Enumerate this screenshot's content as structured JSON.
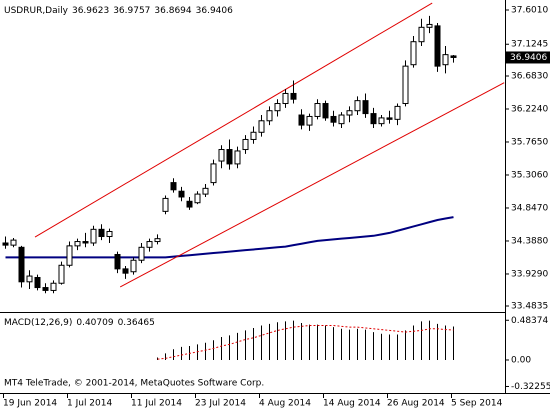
{
  "chart_data": [
    {
      "type": "candlestick",
      "title": "USDRUR,Daily",
      "categories": [
        "19 Jun 2014",
        null,
        null,
        null,
        null,
        null,
        null,
        null,
        "1 Jul 2014",
        null,
        null,
        null,
        null,
        null,
        null,
        null,
        "11 Jul 2014",
        null,
        null,
        null,
        null,
        null,
        null,
        null,
        "23 Jul 2014",
        null,
        null,
        null,
        null,
        null,
        null,
        null,
        "4 Aug 2014",
        null,
        null,
        null,
        null,
        null,
        null,
        null,
        "14 Aug 2014",
        null,
        null,
        null,
        null,
        null,
        null,
        null,
        "26 Aug 2014",
        null,
        null,
        null,
        null,
        null,
        null,
        null,
        "5 Sep 2014"
      ],
      "open": [
        34.36,
        34.33,
        34.3,
        33.82,
        33.88,
        33.74,
        33.7,
        33.8,
        34.05,
        34.32,
        34.38,
        34.36,
        34.55,
        34.45,
        34.2,
        34.0,
        33.96,
        34.12,
        34.3,
        34.38,
        34.8,
        35.2,
        35.08,
        34.94,
        34.92,
        35.04,
        35.2,
        35.5,
        35.66,
        35.46,
        35.66,
        35.8,
        35.9,
        36.06,
        36.2,
        36.3,
        36.44,
        36.14,
        36.0,
        36.12,
        36.3,
        36.12,
        36.02,
        36.14,
        36.2,
        36.34,
        36.16,
        36.02,
        36.1,
        36.08,
        36.3,
        36.84,
        37.16,
        37.36,
        37.38,
        36.84,
        36.9623
      ],
      "high": [
        34.45,
        34.43,
        34.32,
        33.98,
        33.92,
        33.8,
        33.84,
        34.1,
        34.38,
        34.42,
        34.5,
        34.6,
        34.62,
        34.56,
        34.24,
        34.04,
        34.16,
        34.36,
        34.42,
        34.48,
        35.02,
        35.26,
        35.14,
        35.0,
        35.08,
        35.18,
        35.52,
        35.72,
        35.8,
        35.7,
        35.86,
        35.98,
        36.14,
        36.26,
        36.36,
        36.5,
        36.62,
        36.22,
        36.16,
        36.36,
        36.34,
        36.2,
        36.18,
        36.26,
        36.4,
        36.44,
        36.24,
        36.14,
        36.2,
        36.3,
        36.9,
        37.24,
        37.48,
        37.52,
        37.42,
        37.1,
        36.9757
      ],
      "low": [
        34.28,
        34.3,
        33.74,
        33.72,
        33.7,
        33.66,
        33.66,
        33.78,
        34.02,
        34.26,
        34.3,
        34.32,
        34.4,
        34.36,
        33.94,
        33.86,
        33.92,
        34.08,
        34.24,
        34.34,
        34.76,
        35.06,
        34.94,
        34.82,
        34.9,
        35.0,
        35.16,
        35.4,
        35.38,
        35.4,
        35.6,
        35.74,
        35.84,
        36.0,
        36.12,
        36.24,
        36.3,
        35.94,
        35.92,
        36.08,
        36.06,
        35.98,
        35.96,
        36.04,
        36.14,
        36.1,
        35.96,
        35.98,
        36.02,
        36.0,
        36.26,
        36.8,
        37.1,
        37.28,
        36.74,
        36.72,
        36.8694
      ],
      "close": [
        34.33,
        34.4,
        33.82,
        33.9,
        33.74,
        33.7,
        33.8,
        34.05,
        34.32,
        34.38,
        34.36,
        34.55,
        34.45,
        34.52,
        34.0,
        33.94,
        34.12,
        34.3,
        34.38,
        34.42,
        34.98,
        35.1,
        35.0,
        34.86,
        35.04,
        35.12,
        35.46,
        35.66,
        35.46,
        35.64,
        35.8,
        35.9,
        36.06,
        36.2,
        36.3,
        36.44,
        36.36,
        36.0,
        36.12,
        36.3,
        36.1,
        36.04,
        36.14,
        36.2,
        36.34,
        36.16,
        36.02,
        36.1,
        36.08,
        36.26,
        36.82,
        37.16,
        37.36,
        37.4,
        36.82,
        36.98,
        36.9406
      ],
      "ma": {
        "color": "#000080",
        "values": [
          34.16,
          34.16,
          34.16,
          34.16,
          34.16,
          34.16,
          34.16,
          34.16,
          34.16,
          34.16,
          34.16,
          34.16,
          34.16,
          34.16,
          34.16,
          34.16,
          34.16,
          34.16,
          34.16,
          34.16,
          34.16,
          34.17,
          34.18,
          34.19,
          34.2,
          34.21,
          34.22,
          34.23,
          34.24,
          34.25,
          34.26,
          34.27,
          34.28,
          34.29,
          34.3,
          34.31,
          34.33,
          34.35,
          34.37,
          34.39,
          34.4,
          34.41,
          34.42,
          34.43,
          34.44,
          34.45,
          34.46,
          34.48,
          34.5,
          34.53,
          34.56,
          34.59,
          34.62,
          34.65,
          34.68,
          34.7,
          34.72
        ]
      },
      "trendlines": [
        {
          "color": "#e00000",
          "x": [
            3.75,
            53.4
          ],
          "y": [
            34.443,
            37.698
          ]
        },
        {
          "color": "#e00000",
          "x": [
            14.4,
            62.4
          ],
          "y": [
            33.748,
            36.59
          ]
        }
      ],
      "ylim": [
        33.4,
        37.74
      ],
      "yticks": [
        {
          "value": 37.601,
          "label": "37.6010"
        },
        {
          "value": 37.1245,
          "label": "37.1245"
        },
        {
          "value": 36.683,
          "label": "36.6830"
        },
        {
          "value": 36.224,
          "label": "36.2240"
        },
        {
          "value": 35.765,
          "label": "35.7650"
        },
        {
          "value": 35.306,
          "label": "35.3060"
        },
        {
          "value": 34.847,
          "label": "34.8470"
        },
        {
          "value": 34.388,
          "label": "34.3880"
        },
        {
          "value": 33.929,
          "label": "33.9290"
        },
        {
          "value": 33.4835,
          "label": "33.4835"
        }
      ]
    },
    {
      "type": "macd",
      "title": "MACD(12,26,9)",
      "macd": {
        "color": "#000000",
        "values": [
          null,
          null,
          null,
          null,
          null,
          null,
          null,
          null,
          null,
          null,
          null,
          null,
          null,
          null,
          null,
          null,
          null,
          null,
          null,
          0.03,
          0.08,
          0.13,
          0.16,
          0.17,
          0.19,
          0.21,
          0.24,
          0.28,
          0.3,
          0.33,
          0.36,
          0.39,
          0.42,
          0.44,
          0.46,
          0.47,
          0.48,
          0.45,
          0.43,
          0.43,
          0.42,
          0.4,
          0.38,
          0.37,
          0.38,
          0.37,
          0.34,
          0.32,
          0.31,
          0.31,
          0.36,
          0.42,
          0.47,
          0.48,
          0.44,
          0.42,
          0.40709
        ]
      },
      "signal": {
        "color": "#e00000",
        "values": [
          null,
          null,
          null,
          null,
          null,
          null,
          null,
          null,
          null,
          null,
          null,
          null,
          null,
          null,
          null,
          null,
          null,
          null,
          null,
          0.01,
          0.02,
          0.04,
          0.06,
          0.08,
          0.1,
          0.12,
          0.14,
          0.17,
          0.19,
          0.22,
          0.25,
          0.27,
          0.3,
          0.33,
          0.36,
          0.38,
          0.4,
          0.41,
          0.42,
          0.42,
          0.42,
          0.42,
          0.41,
          0.4,
          0.4,
          0.39,
          0.38,
          0.37,
          0.36,
          0.35,
          0.34,
          0.35,
          0.36,
          0.38,
          0.38,
          0.37,
          0.36465
        ]
      },
      "ylim": [
        -0.39,
        0.56
      ],
      "yticks": [
        0.48374,
        {
          "value": 0,
          "label": "0.00"
        },
        -0.32255
      ]
    }
  ],
  "footer": "MT4 TeleTrade, © 2001-2014, MetaQuotes Software Corp."
}
